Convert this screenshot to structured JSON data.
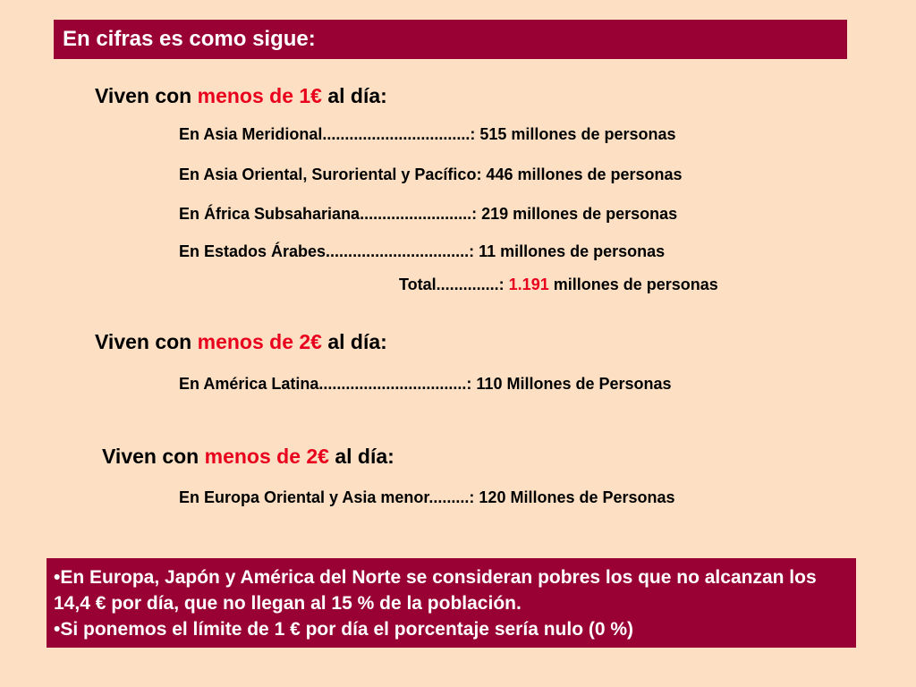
{
  "header": {
    "title": "En cifras es como sigue:"
  },
  "section1": {
    "prefix": "Viven con ",
    "highlight": "menos de 1€",
    "suffix": " al día:",
    "rows": [
      "En Asia Meridional.................................: 515 millones de personas",
      "En Asia Oriental, Suroriental y Pacífico: 446 millones de personas",
      "En África Subsahariana.........................: 219 millones de personas",
      "En Estados Árabes................................:   11 millones de personas"
    ],
    "total_label": "Total..............: ",
    "total_value": "1.191",
    "total_suffix": " millones de personas"
  },
  "section2": {
    "prefix": "Viven con ",
    "highlight": "menos de 2€",
    "suffix": " al día:",
    "row": "En América Latina.................................: 110  Millones de Personas"
  },
  "section3": {
    "prefix": "Viven con ",
    "highlight": "menos de 2€",
    "suffix": " al día:",
    "row": "En Europa Oriental y Asia menor.........: 120 Millones de Personas"
  },
  "notes": [
    "•En Europa, Japón y América del Norte se consideran pobres los que no alcanzan los 14,4 € por día, que no llegan al 15 % de la población.",
    "•Si ponemos el límite de 1 € por día el porcentaje sería nulo (0 %)"
  ],
  "colors": {
    "background": "#fde0c4",
    "accent": "#990033",
    "highlight": "#e8001c"
  }
}
